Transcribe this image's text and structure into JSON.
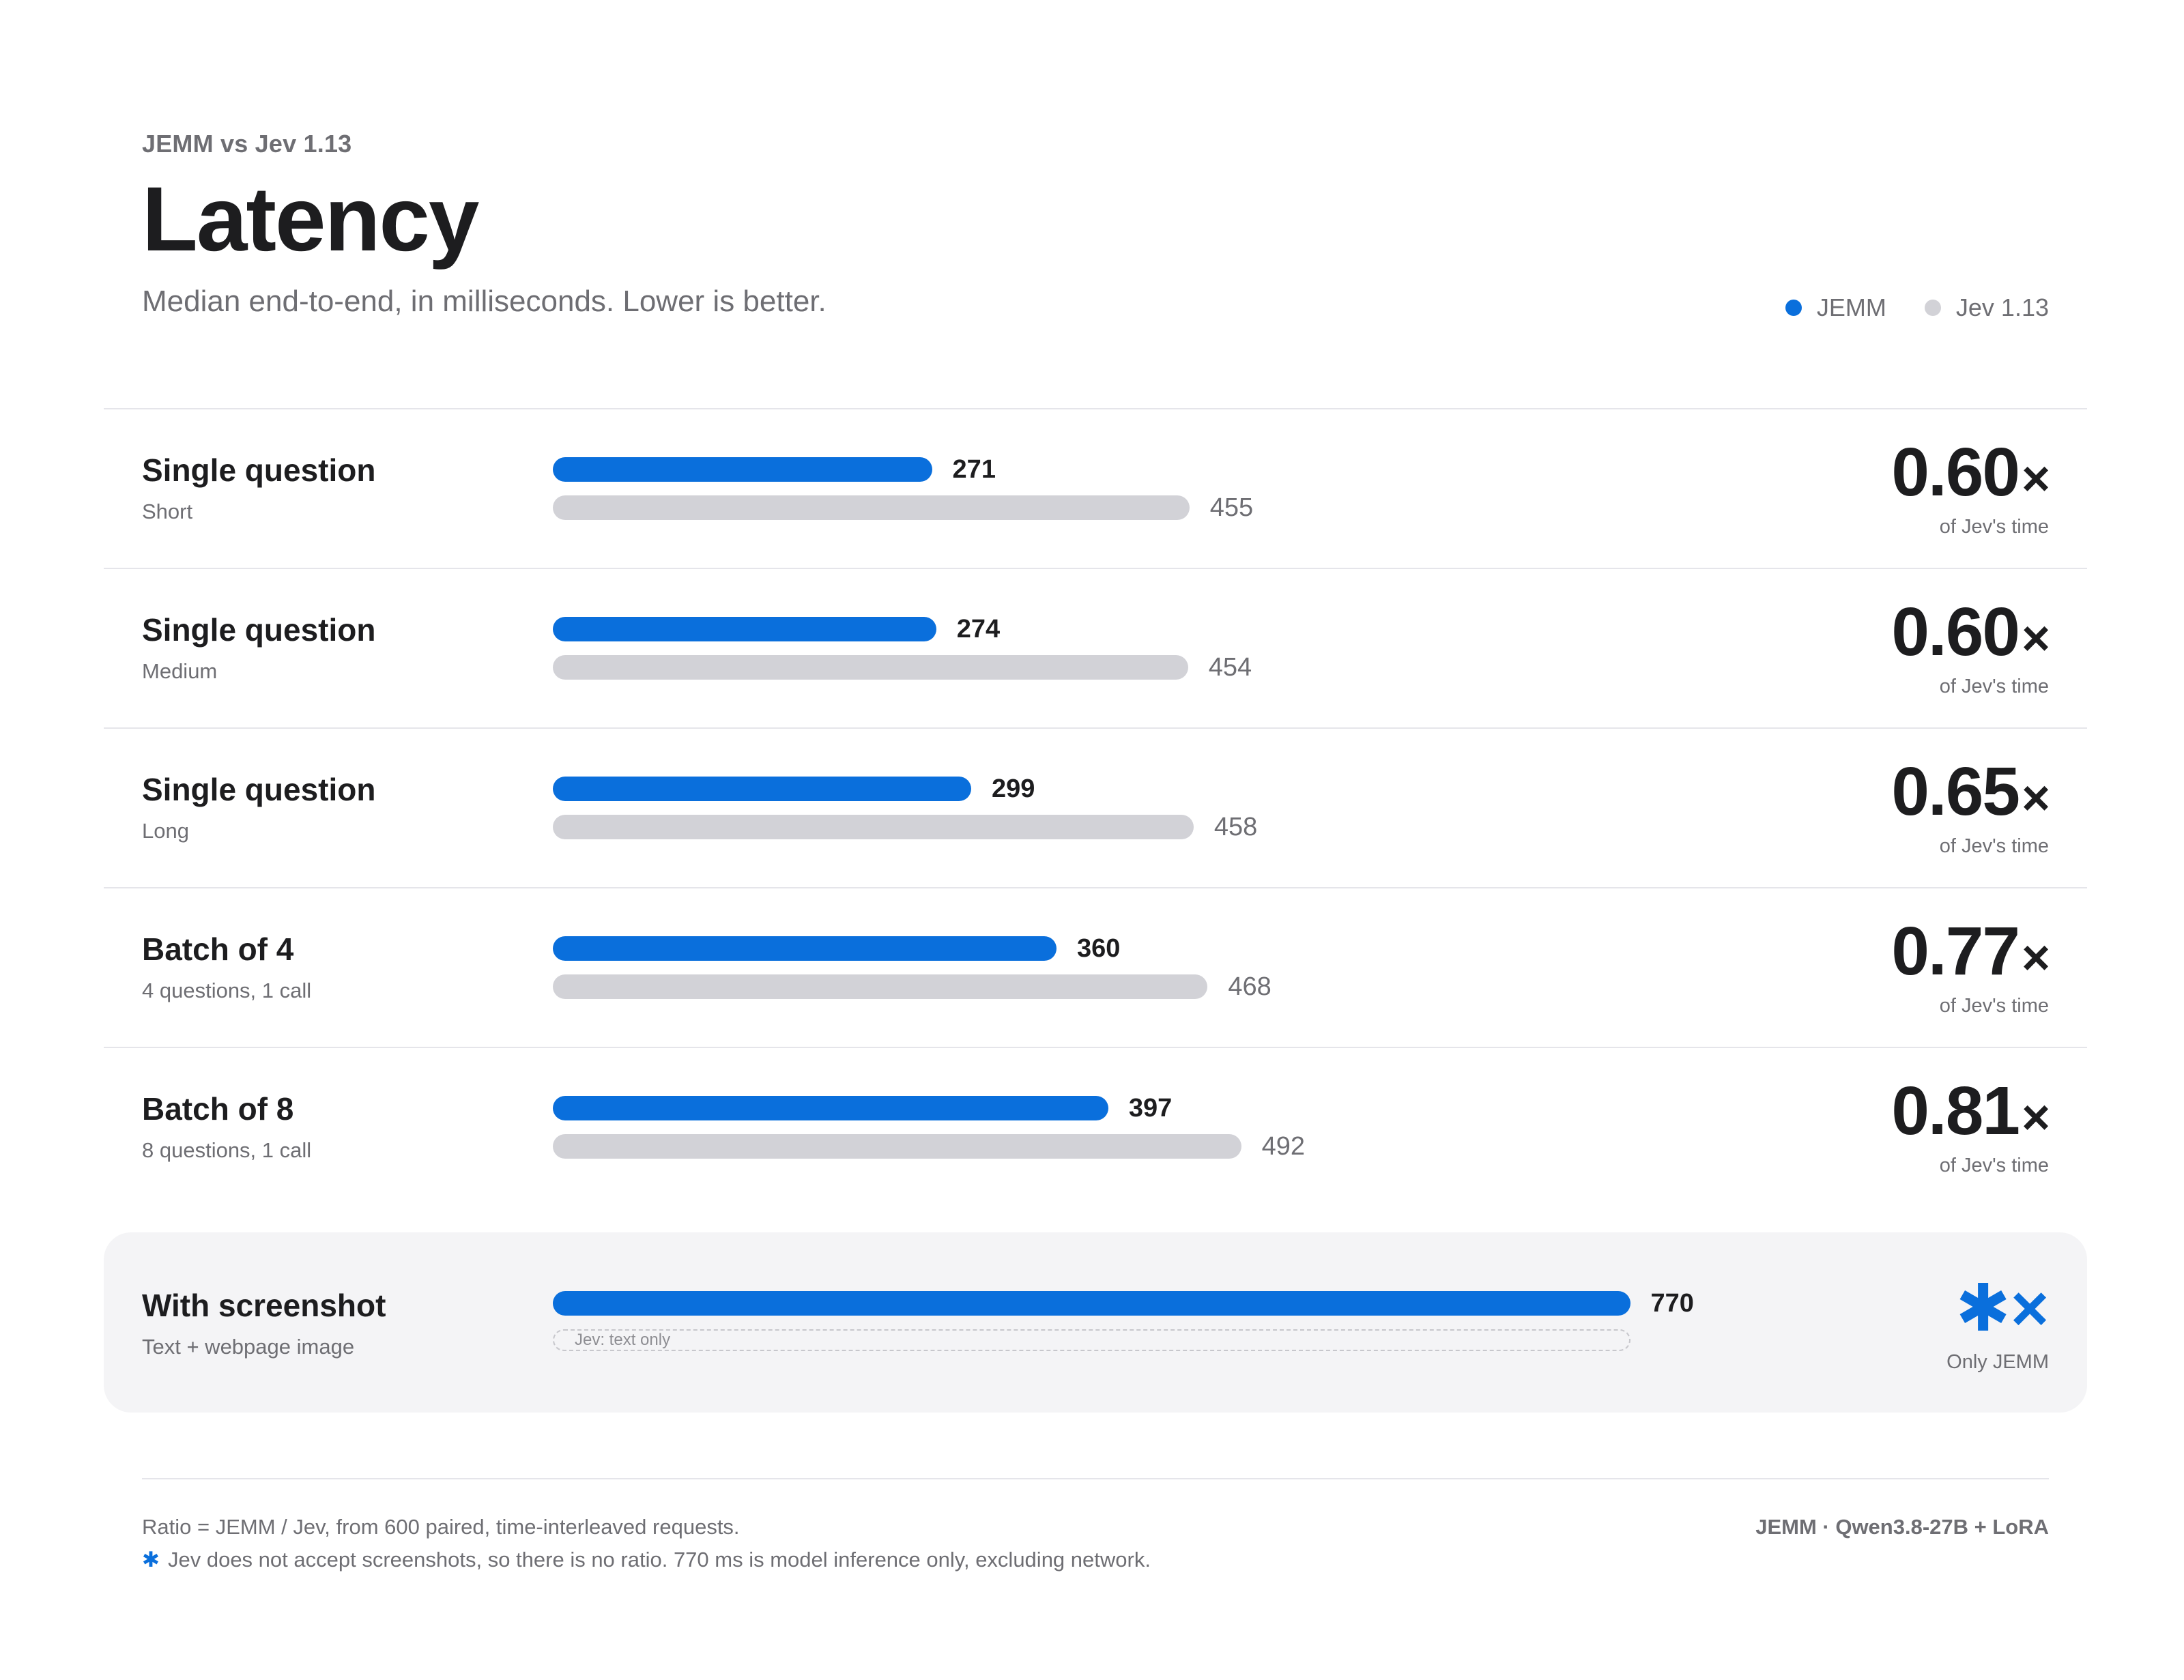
{
  "header": {
    "eyebrow": "JEMM vs Jev 1.13",
    "title": "Latency",
    "subtitle": "Median end-to-end, in milliseconds. Lower is better."
  },
  "legend": [
    {
      "label": "JEMM",
      "color": "#0a6fdc"
    },
    {
      "label": "Jev 1.13",
      "color": "#d2d2d7"
    }
  ],
  "chart_data": {
    "type": "bar",
    "title": "Latency",
    "subtitle": "Median end-to-end, in milliseconds. Lower is better.",
    "xlim": [
      0,
      800
    ],
    "legend_position": "top-right",
    "categories": [
      {
        "name": "Single question",
        "sub": "Short"
      },
      {
        "name": "Single question",
        "sub": "Medium"
      },
      {
        "name": "Single question",
        "sub": "Long"
      },
      {
        "name": "Batch of 4",
        "sub": "4 questions, 1 call"
      },
      {
        "name": "Batch of 8",
        "sub": "8 questions, 1 call"
      }
    ],
    "series": [
      {
        "name": "JEMM",
        "values": [
          271,
          274,
          299,
          360,
          397
        ]
      },
      {
        "name": "Jev 1.13",
        "values": [
          455,
          454,
          458,
          468,
          492
        ]
      }
    ],
    "ratios": [
      "0.60",
      "0.60",
      "0.65",
      "0.77",
      "0.81"
    ],
    "ratio_suffix": "×",
    "ratio_caption": "of Jev's time",
    "special": {
      "name": "With screenshot",
      "sub": "Text + webpage image",
      "jemm_value": 770,
      "jev_placeholder": "Jev: text only",
      "ratio_symbol": "✱×",
      "ratio_caption": "Only JEMM"
    }
  },
  "footer": {
    "note1": "Ratio = JEMM / Jev, from 600 paired, time-interleaved requests.",
    "note2_marker": "✱",
    "note2": "Jev does not accept screenshots, so there is no ratio. 770 ms is model inference only, excluding network.",
    "credit": "JEMM · Qwen3.8-27B + LoRA"
  }
}
